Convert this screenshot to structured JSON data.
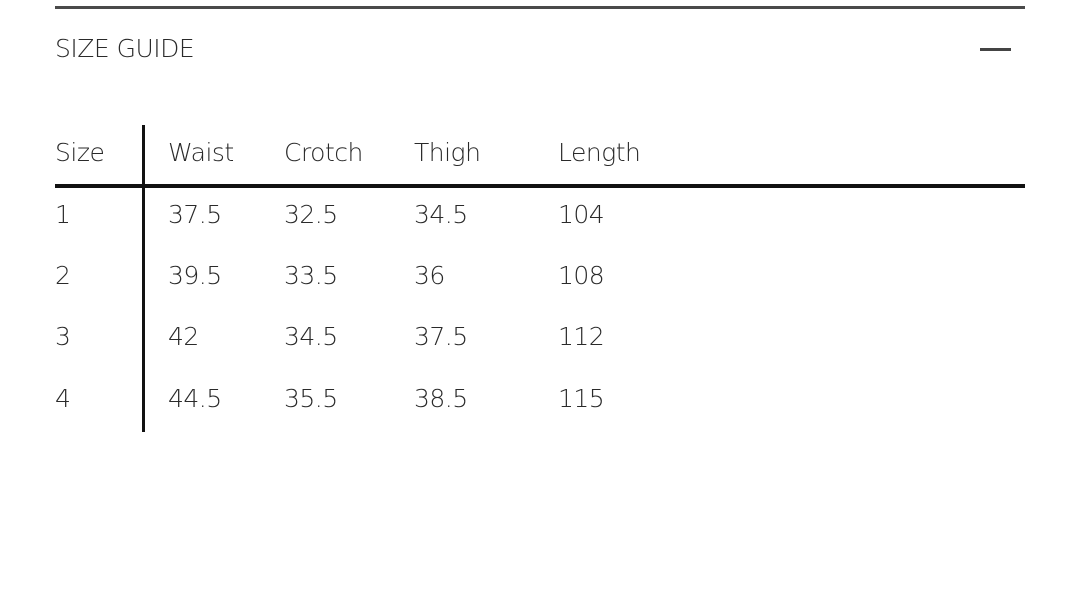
{
  "title": "SIZE GUIDE",
  "collapse_icon": "minus-icon",
  "table": {
    "headers": [
      "Size",
      "Waist",
      "Crotch",
      "Thigh",
      "Length"
    ],
    "rows": [
      [
        "1",
        "37.5",
        "32.5",
        "34.5",
        "104"
      ],
      [
        "2",
        "39.5",
        "33.5",
        "36",
        "108"
      ],
      [
        "3",
        "42",
        "34.5",
        "37.5",
        "112"
      ],
      [
        "4",
        "44.5",
        "35.5",
        "38.5",
        "115"
      ]
    ]
  }
}
